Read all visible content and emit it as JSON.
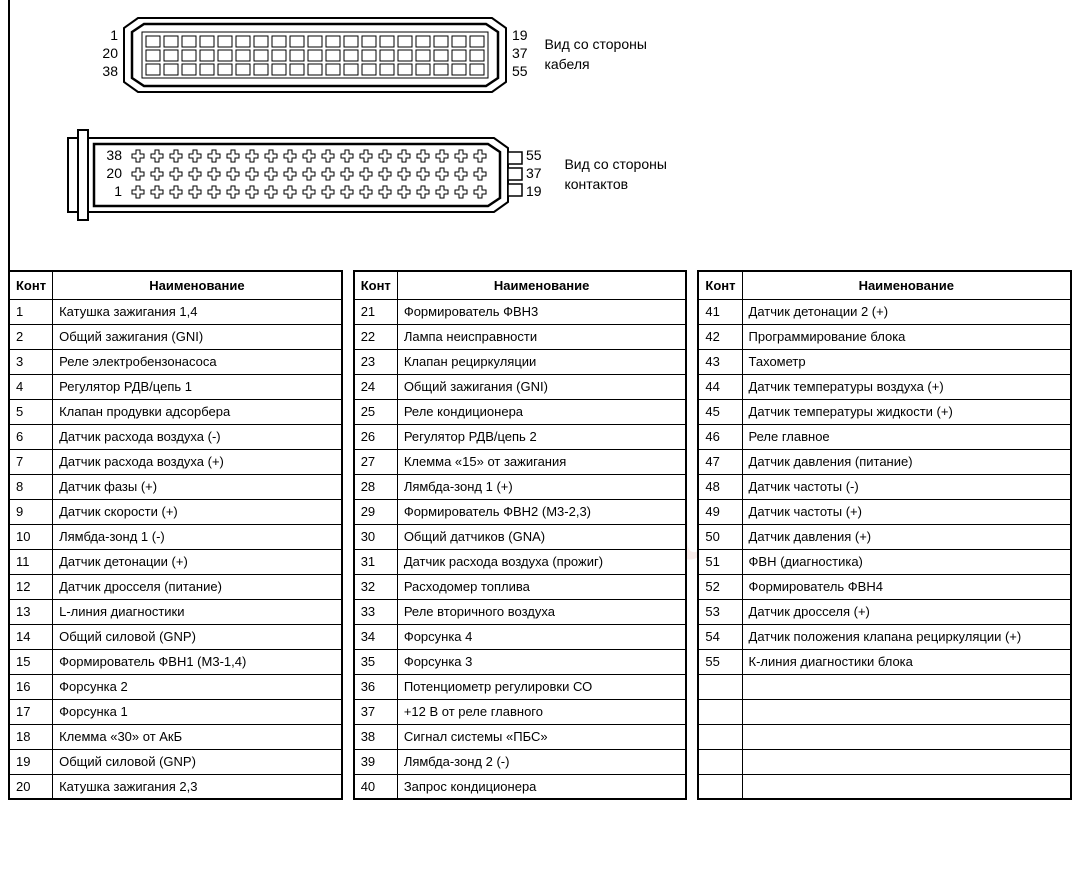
{
  "diagram": {
    "connector1": {
      "caption_line1": "Вид со стороны",
      "caption_line2": "кабеля",
      "pins_left": [
        "1",
        "20",
        "38"
      ],
      "pins_right": [
        "19",
        "37",
        "55"
      ],
      "stroke": "#000000",
      "fill": "#ffffff",
      "pin_color": "#000000",
      "cols": 19,
      "rows": 3
    },
    "connector2": {
      "caption_line1": "Вид со стороны",
      "caption_line2": "контактов",
      "pins_left": [
        "38",
        "20",
        "1"
      ],
      "pins_right": [
        "55",
        "37",
        "19"
      ],
      "stroke": "#000000",
      "fill": "#ffffff",
      "pin_color": "#000000",
      "cols": 19,
      "rows": 3
    }
  },
  "watermark": "2shemi.ru",
  "table": {
    "headers": {
      "num": "Конт",
      "name": "Наименование"
    },
    "border_color": "#000000",
    "bg_color": "#ffffff",
    "font_size": 13,
    "col_a": [
      {
        "n": "1",
        "v": "Катушка зажигания 1,4"
      },
      {
        "n": "2",
        "v": "Общий зажигания (GNI)"
      },
      {
        "n": "3",
        "v": "Реле электробензонасоса"
      },
      {
        "n": "4",
        "v": "Регулятор РДВ/цепь 1"
      },
      {
        "n": "5",
        "v": "Клапан продувки адсорбера"
      },
      {
        "n": "6",
        "v": "Датчик расхода воздуха (-)"
      },
      {
        "n": "7",
        "v": "Датчик расхода воздуха (+)"
      },
      {
        "n": "8",
        "v": "Датчик фазы (+)"
      },
      {
        "n": "9",
        "v": "Датчик скорости (+)"
      },
      {
        "n": "10",
        "v": "Лямбда-зонд 1 (-)"
      },
      {
        "n": "11",
        "v": "Датчик детонации (+)"
      },
      {
        "n": "12",
        "v": "Датчик дросселя (питание)"
      },
      {
        "n": "13",
        "v": "L-линия диагностики"
      },
      {
        "n": "14",
        "v": "Общий силовой (GNP)"
      },
      {
        "n": "15",
        "v": "Формирователь ФВН1 (М3-1,4)"
      },
      {
        "n": "16",
        "v": "Форсунка 2"
      },
      {
        "n": "17",
        "v": "Форсунка 1"
      },
      {
        "n": "18",
        "v": "Клемма «30» от АкБ"
      },
      {
        "n": "19",
        "v": "Общий силовой (GNP)"
      },
      {
        "n": "20",
        "v": "Катушка зажигания 2,3"
      }
    ],
    "col_b": [
      {
        "n": "21",
        "v": "Формирователь ФВН3"
      },
      {
        "n": "22",
        "v": "Лампа неисправности"
      },
      {
        "n": "23",
        "v": "Клапан рециркуляции"
      },
      {
        "n": "24",
        "v": "Общий зажигания (GNI)"
      },
      {
        "n": "25",
        "v": "Реле кондиционера"
      },
      {
        "n": "26",
        "v": "Регулятор РДВ/цепь 2"
      },
      {
        "n": "27",
        "v": "Клемма «15» от зажигания"
      },
      {
        "n": "28",
        "v": "Лямбда-зонд 1 (+)"
      },
      {
        "n": "29",
        "v": "Формирователь ФВН2 (М3-2,3)"
      },
      {
        "n": "30",
        "v": "Общий датчиков (GNA)"
      },
      {
        "n": "31",
        "v": "Датчик расхода воздуха (прожиг)"
      },
      {
        "n": "32",
        "v": "Расходомер топлива"
      },
      {
        "n": "33",
        "v": "Реле вторичного воздуха"
      },
      {
        "n": "34",
        "v": "Форсунка 4"
      },
      {
        "n": "35",
        "v": "Форсунка 3"
      },
      {
        "n": "36",
        "v": "Потенциометр регулировки СО"
      },
      {
        "n": "37",
        "v": "+12 В от реле главного"
      },
      {
        "n": "38",
        "v": "Сигнал системы «ПБС»"
      },
      {
        "n": "39",
        "v": "Лямбда-зонд 2 (-)"
      },
      {
        "n": "40",
        "v": "Запрос кондиционера"
      }
    ],
    "col_c": [
      {
        "n": "41",
        "v": "Датчик детонации 2 (+)"
      },
      {
        "n": "42",
        "v": "Программирование блока"
      },
      {
        "n": "43",
        "v": "Тахометр"
      },
      {
        "n": "44",
        "v": "Датчик температуры воздуха (+)"
      },
      {
        "n": "45",
        "v": "Датчик температуры жидкости (+)"
      },
      {
        "n": "46",
        "v": "Реле главное"
      },
      {
        "n": "47",
        "v": "Датчик давления (питание)"
      },
      {
        "n": "48",
        "v": "Датчик частоты (-)"
      },
      {
        "n": "49",
        "v": "Датчик частоты (+)"
      },
      {
        "n": "50",
        "v": "Датчик давления (+)"
      },
      {
        "n": "51",
        "v": "ФВН (диагностика)"
      },
      {
        "n": "52",
        "v": "Формирователь ФВН4"
      },
      {
        "n": "53",
        "v": "Датчик дросселя (+)"
      },
      {
        "n": "54",
        "v": "Датчик положения клапана рециркуляции (+)"
      },
      {
        "n": "55",
        "v": "К-линия диагностики блока"
      },
      {
        "n": "",
        "v": ""
      },
      {
        "n": "",
        "v": ""
      },
      {
        "n": "",
        "v": ""
      },
      {
        "n": "",
        "v": ""
      },
      {
        "n": "",
        "v": ""
      }
    ]
  }
}
